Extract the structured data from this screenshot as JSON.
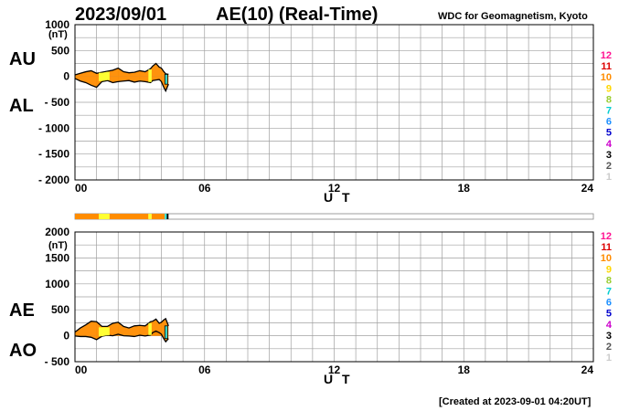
{
  "header": {
    "date": "2023/09/01",
    "title": "AE(10) (Real-Time)",
    "source": "WDC for Geomagnetism, Kyoto"
  },
  "footer": "[Created at 2023-09-01 04:20UT]",
  "legend": {
    "items": [
      "12",
      "11",
      "10",
      "9",
      "8",
      "7",
      "6",
      "5",
      "4",
      "3",
      "2",
      "1"
    ],
    "colors": [
      "#ff1493",
      "#dd0000",
      "#ff8c00",
      "#ffd700",
      "#9acd32",
      "#00ced1",
      "#1e90ff",
      "#0000cd",
      "#cc00cc",
      "#000000",
      "#555555",
      "#cccccc"
    ]
  },
  "colors": {
    "au_fill": "#ff8c00",
    "al_fill": "#ff8c00",
    "grid": "#a0a0a0",
    "station_bar": [
      "#ff8c00",
      "#ffff33",
      "#ff8c00",
      "#ffff33",
      "#ff8c00",
      "#40e0d0",
      "#000000"
    ]
  },
  "chart_data": [
    {
      "type": "area",
      "id": "au-al",
      "xlabel": "U T",
      "unit": "(nT)",
      "ylim": [
        -2000,
        1000
      ],
      "yticks": [
        1000,
        500,
        0,
        -500,
        -1000,
        -1500,
        -2000
      ],
      "ytick_labels": [
        "1000",
        "500",
        "0",
        "- 500",
        "- 1000",
        "- 1500",
        "- 2000"
      ],
      "xlim": [
        0,
        24
      ],
      "xticks": [
        0,
        6,
        12,
        18,
        24
      ],
      "xtick_labels": [
        "00",
        "06",
        "12",
        "18",
        "24"
      ],
      "labels": {
        "upper": "AU",
        "lower": "AL"
      },
      "x": [
        0,
        0.25,
        0.5,
        0.75,
        1.0,
        1.25,
        1.5,
        1.75,
        2.0,
        2.25,
        2.5,
        2.75,
        3.0,
        3.25,
        3.5,
        3.6,
        3.75,
        3.9,
        4.0,
        4.1,
        4.2,
        4.33
      ],
      "series": [
        {
          "name": "AU",
          "values": [
            30,
            60,
            90,
            110,
            60,
            80,
            100,
            120,
            160,
            90,
            70,
            80,
            110,
            90,
            150,
            200,
            250,
            180,
            160,
            100,
            50,
            40
          ]
        },
        {
          "name": "AL",
          "values": [
            -40,
            -90,
            -120,
            -170,
            -210,
            -100,
            -80,
            -120,
            -100,
            -90,
            -80,
            -110,
            -90,
            -100,
            -120,
            -80,
            -70,
            -60,
            -100,
            -200,
            -280,
            -150
          ]
        }
      ]
    },
    {
      "type": "area",
      "id": "ae-ao",
      "xlabel": "U T",
      "unit": "(nT)",
      "ylim": [
        -500,
        2000
      ],
      "yticks": [
        2000,
        1500,
        1000,
        500,
        0,
        -500
      ],
      "ytick_labels": [
        "2000",
        "1500",
        "1000",
        "500",
        "0",
        "- 500"
      ],
      "xlim": [
        0,
        24
      ],
      "xticks": [
        0,
        6,
        12,
        18,
        24
      ],
      "xtick_labels": [
        "00",
        "06",
        "12",
        "18",
        "24"
      ],
      "labels": {
        "upper": "AE",
        "lower": "AO"
      },
      "x": [
        0,
        0.25,
        0.5,
        0.75,
        1.0,
        1.25,
        1.5,
        1.75,
        2.0,
        2.25,
        2.5,
        2.75,
        3.0,
        3.25,
        3.5,
        3.6,
        3.75,
        3.9,
        4.0,
        4.1,
        4.2,
        4.33
      ],
      "series": [
        {
          "name": "AE",
          "values": [
            70,
            150,
            210,
            280,
            270,
            180,
            180,
            240,
            260,
            180,
            150,
            190,
            200,
            190,
            270,
            280,
            320,
            240,
            260,
            300,
            330,
            190
          ]
        },
        {
          "name": "AO",
          "values": [
            -5,
            -15,
            -15,
            -30,
            -75,
            -10,
            10,
            0,
            30,
            0,
            -5,
            -15,
            10,
            -5,
            15,
            60,
            90,
            60,
            30,
            -50,
            -115,
            -55
          ]
        }
      ]
    }
  ]
}
